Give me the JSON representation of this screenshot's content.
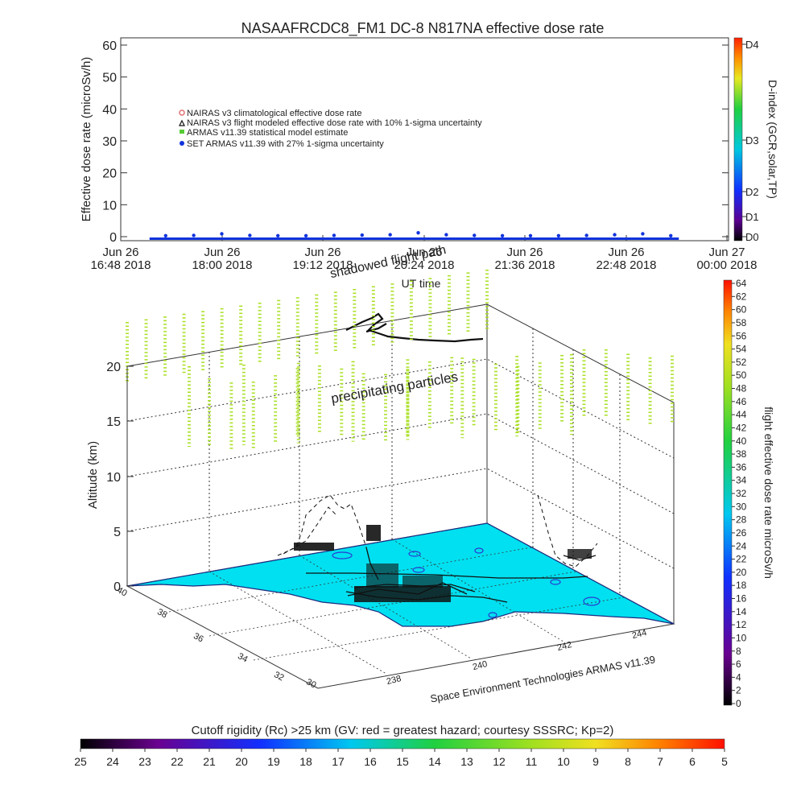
{
  "title": "NASAAFRCDC8_FM1 DC-8   N817NA effective dose rate",
  "top_plot": {
    "ylabel": "Effective dose rate (microSv/h)",
    "xlabel": "UT time",
    "y_ticks": [
      "0",
      "10",
      "20",
      "30",
      "40",
      "50",
      "60"
    ],
    "ylim": [
      0,
      60
    ],
    "x_ticks": [
      {
        "date": "Jun 26",
        "time": "16:48 2018"
      },
      {
        "date": "Jun 26",
        "time": "18:00 2018"
      },
      {
        "date": "Jun 26",
        "time": "19:12 2018"
      },
      {
        "date": "Jun 26",
        "time": "20:24 2018"
      },
      {
        "date": "Jun 26",
        "time": "21:36 2018"
      },
      {
        "date": "Jun 26",
        "time": "22:48 2018"
      },
      {
        "date": "Jun 27",
        "time": "00:00 2018"
      }
    ],
    "legend": [
      {
        "label": "NAIRAS v3 climatological effective dose rate",
        "marker": "circle",
        "color": "#e07070"
      },
      {
        "label": "NAIRAS v3 flight modeled effective dose rate with 10% 1-sigma uncertainty",
        "marker": "triangle",
        "color": "#111111"
      },
      {
        "label": "ARMAS v11.39 statistical model estimate",
        "marker": "square",
        "color": "#55cc33"
      },
      {
        "label": "SET ARMAS v11.39 with 27% 1-sigma uncertainty",
        "marker": "dot",
        "color": "#1133dd"
      }
    ],
    "dindex": {
      "label": "D-index (GCR,solar,TP)",
      "ticks": [
        "D0",
        "D1",
        "D2",
        "D3",
        "D4"
      ]
    }
  },
  "chart_data": {
    "type": "scatter",
    "title": "NASAAFRCDC8_FM1 DC-8   N817NA effective dose rate",
    "xlabel": "UT time",
    "ylabel": "Effective dose rate (microSv/h)",
    "ylim": [
      0,
      60
    ],
    "x_range": [
      "Jun 26 16:48 2018",
      "Jun 27 00:00 2018"
    ],
    "series": [
      {
        "name": "SET ARMAS v11.39 with 27% 1-sigma uncertainty",
        "x": [
          "17:20",
          "17:40",
          "18:00",
          "18:20",
          "18:40",
          "19:00",
          "19:20",
          "19:40",
          "20:00",
          "20:20",
          "20:40",
          "21:00",
          "21:20",
          "21:40",
          "22:00",
          "22:20",
          "22:40",
          "23:00",
          "23:20"
        ],
        "y": [
          0.3,
          0.4,
          0.9,
          0.4,
          0.3,
          0.3,
          0.4,
          0.5,
          0.6,
          1.2,
          0.6,
          0.4,
          0.3,
          0.3,
          0.3,
          0.4,
          0.6,
          0.9,
          0.3
        ]
      }
    ]
  },
  "scene": {
    "labels": {
      "shadowed_flight_path": "shadowed flight path",
      "precipitating_particles": "precipitating particles",
      "altitude": "Altitude (km)",
      "credit": "Space Environment Technologies ARMAS v11.39"
    },
    "altitude_ticks": [
      "0",
      "5",
      "10",
      "15",
      "20"
    ],
    "lat_ticks": [
      "30",
      "32",
      "34",
      "36",
      "38",
      "40"
    ],
    "lon_ticks": [
      "238",
      "240",
      "242",
      "244"
    ],
    "dose_colorbar": {
      "label": "flight effective dose rate microSv/h",
      "ticks": [
        "0",
        "2",
        "4",
        "6",
        "8",
        "10",
        "12",
        "14",
        "16",
        "18",
        "20",
        "22",
        "24",
        "26",
        "28",
        "30",
        "32",
        "34",
        "36",
        "38",
        "40",
        "42",
        "44",
        "46",
        "48",
        "50",
        "52",
        "54",
        "56",
        "58",
        "60",
        "62",
        "64"
      ]
    }
  },
  "cutoff": {
    "label": "Cutoff rigidity (Rc) >25 km (GV: red = greatest hazard; courtesy SSSRC; Kp=2)",
    "ticks": [
      "25",
      "24",
      "23",
      "22",
      "21",
      "20",
      "19",
      "18",
      "17",
      "16",
      "15",
      "14",
      "13",
      "12",
      "11",
      "10",
      "9",
      "8",
      "7",
      "6",
      "5"
    ]
  }
}
